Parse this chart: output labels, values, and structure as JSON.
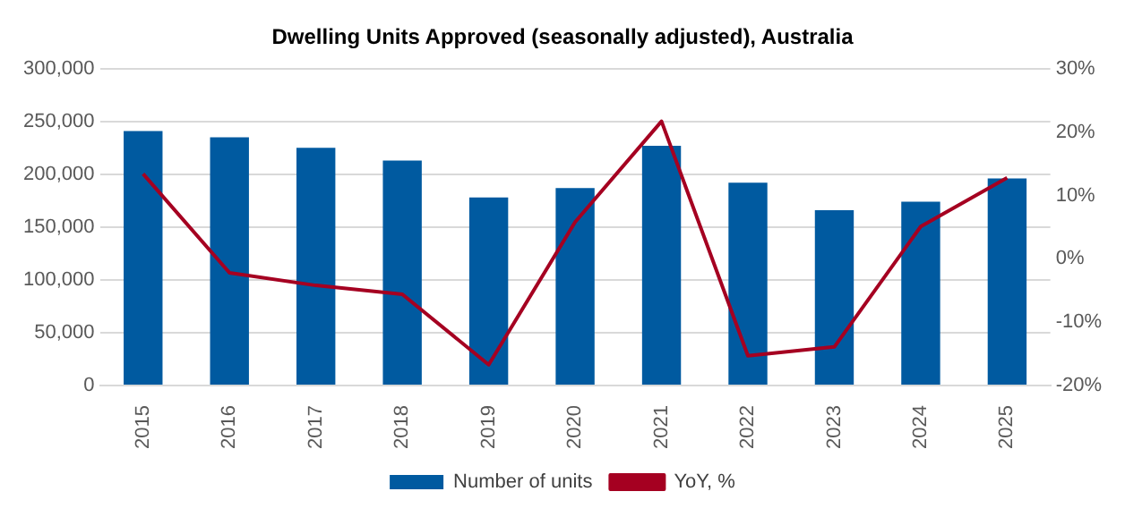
{
  "chart_data": {
    "type": "bar",
    "title": "Dwelling Units Approved (seasonally adjusted), Australia",
    "categories": [
      "2015",
      "2016",
      "2017",
      "2018",
      "2019",
      "2020",
      "2021",
      "2022",
      "2023",
      "2024",
      "2025"
    ],
    "series": [
      {
        "name": "Number of units",
        "color": "#005aa0",
        "values": [
          241000,
          235000,
          225000,
          213000,
          178000,
          187000,
          227000,
          192000,
          166000,
          174000,
          196000
        ]
      },
      {
        "name": "YoY, %",
        "type": "line",
        "axis": "y2",
        "color": "#a50021",
        "marker": "none",
        "values": [
          13.4,
          -2.2,
          -4.2,
          -5.6,
          -16.7,
          5.8,
          21.7,
          -15.3,
          -13.9,
          5.1,
          12.8
        ]
      }
    ],
    "ylim": [
      0,
      300000
    ],
    "yticks": [
      {
        "value": 0,
        "label": "0"
      },
      {
        "value": 50000,
        "label": "50,000"
      },
      {
        "value": 100000,
        "label": "100,000"
      },
      {
        "value": 150000,
        "label": "150,000"
      },
      {
        "value": 200000,
        "label": "200,000"
      },
      {
        "value": 250000,
        "label": "250,000"
      },
      {
        "value": 300000,
        "label": "300,000"
      }
    ],
    "y2lim": [
      -20,
      30
    ],
    "y2ticks": [
      {
        "value": -20,
        "label": "-20%"
      },
      {
        "value": -10,
        "label": "-10%"
      },
      {
        "value": 0,
        "label": "0%"
      },
      {
        "value": 10,
        "label": "10%"
      },
      {
        "value": 20,
        "label": "20%"
      },
      {
        "value": 30,
        "label": "30%"
      }
    ],
    "grid": "y",
    "legend": "bottom"
  }
}
